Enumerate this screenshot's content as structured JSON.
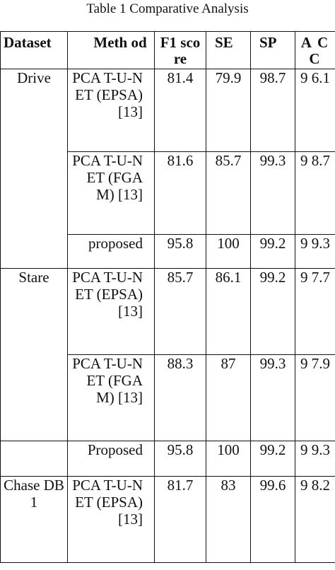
{
  "caption": "Table 1 Comparative Analysis",
  "headers": {
    "dataset": "Dataset",
    "method": "Meth od",
    "f1": "F1 score",
    "se": "SE",
    "sp": "SP",
    "acc": "A CC"
  },
  "groups": [
    {
      "dataset": "Drive",
      "rows": [
        {
          "method": "PCA T-U-NET (EPSA) [13]",
          "f1": "81.4",
          "se": "79.9",
          "sp": "98.7",
          "acc": "9 6.1"
        },
        {
          "method": "PCA T-U-NET (FGAM) [13]",
          "f1": "81.6",
          "se": "85.7",
          "sp": "99.3",
          "acc": "9 8.7"
        },
        {
          "method": "proposed",
          "f1": "95.8",
          "se": "100",
          "sp": "99.2",
          "acc": "9 9.3"
        }
      ]
    },
    {
      "dataset": "Stare",
      "rows": [
        {
          "method": "PCA T-U-NET (EPSA) [13]",
          "f1": "85.7",
          "se": "86.1",
          "sp": "99.2",
          "acc": "9 7.7"
        },
        {
          "method": "PCA T-U-NET (FGAM) [13]",
          "f1": "88.3",
          "se": "87",
          "sp": "99.3",
          "acc": "9 7.9"
        }
      ]
    },
    {
      "dataset": "",
      "rows": [
        {
          "method": "Proposed",
          "f1": "95.8",
          "se": "100",
          "sp": "99.2",
          "acc": "9 9.3"
        }
      ]
    },
    {
      "dataset": "Chase DB1",
      "rows": [
        {
          "method": "PCA T-U-NET (EPSA) [13]",
          "f1": "81.7",
          "se": "83",
          "sp": "99.6",
          "acc": "9 8.2"
        }
      ]
    }
  ]
}
